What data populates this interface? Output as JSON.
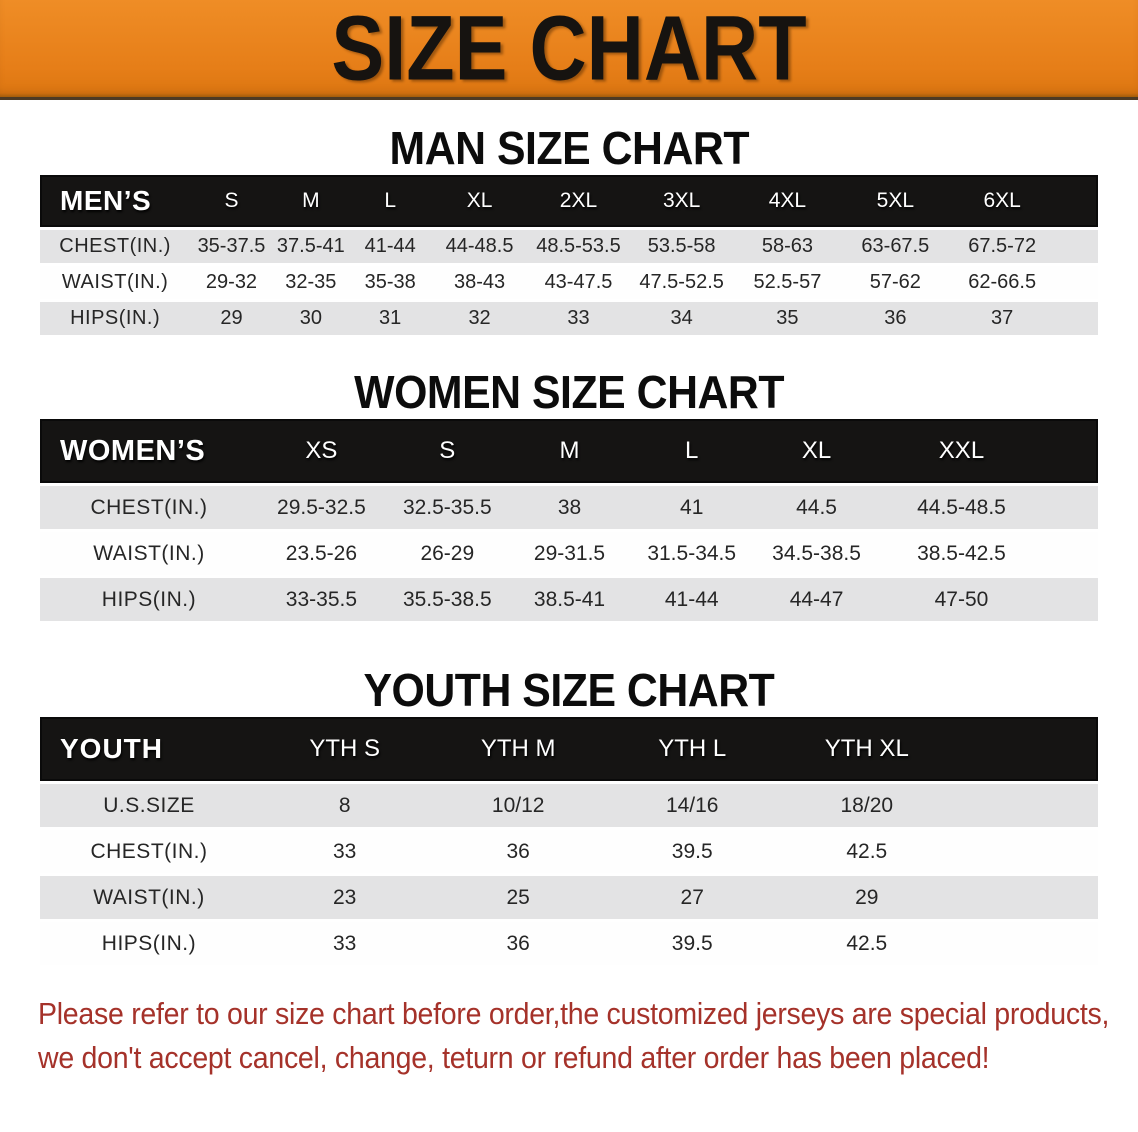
{
  "banner": {
    "title": "SIZE CHART"
  },
  "men": {
    "heading": "MAN SIZE CHART",
    "table": {
      "header": [
        "MEN’S",
        "S",
        "M",
        "L",
        "XL",
        "2XL",
        "3XL",
        "4XL",
        "5XL",
        "6XL"
      ],
      "rows": [
        {
          "label": "CHEST(IN.)",
          "values": [
            "35-37.5",
            "37.5-41",
            "41-44",
            "44-48.5",
            "48.5-53.5",
            "53.5-58",
            "58-63",
            "63-67.5",
            "67.5-72"
          ]
        },
        {
          "label": "WAIST(IN.)",
          "values": [
            "29-32",
            "32-35",
            "35-38",
            "38-43",
            "43-47.5",
            "47.5-52.5",
            "52.5-57",
            "57-62",
            "62-66.5"
          ]
        },
        {
          "label": "HIPS(IN.)",
          "values": [
            "29",
            "30",
            "31",
            "32",
            "33",
            "34",
            "35",
            "36",
            "37"
          ]
        }
      ]
    }
  },
  "women": {
    "heading": "WOMEN SIZE CHART",
    "table": {
      "header": [
        "WOMEN’S",
        "XS",
        "S",
        "M",
        "L",
        "XL",
        "XXL"
      ],
      "rows": [
        {
          "label": "CHEST(IN.)",
          "values": [
            "29.5-32.5",
            "32.5-35.5",
            "38",
            "41",
            "44.5",
            "44.5-48.5"
          ]
        },
        {
          "label": "WAIST(IN.)",
          "values": [
            "23.5-26",
            "26-29",
            "29-31.5",
            "31.5-34.5",
            "34.5-38.5",
            "38.5-42.5"
          ]
        },
        {
          "label": "HIPS(IN.)",
          "values": [
            "33-35.5",
            "35.5-38.5",
            "38.5-41",
            "41-44",
            "44-47",
            "47-50"
          ]
        }
      ]
    }
  },
  "youth": {
    "heading": "YOUTH SIZE CHART",
    "table": {
      "header": [
        "YOUTH",
        "YTH S",
        "YTH M",
        "YTH L",
        "YTH XL"
      ],
      "rows": [
        {
          "label": "U.S.SIZE",
          "values": [
            "8",
            "10/12",
            "14/16",
            "18/20"
          ]
        },
        {
          "label": "CHEST(IN.)",
          "values": [
            "33",
            "36",
            "39.5",
            "42.5"
          ]
        },
        {
          "label": "WAIST(IN.)",
          "values": [
            "23",
            "25",
            "27",
            "29"
          ]
        },
        {
          "label": "HIPS(IN.)",
          "values": [
            "33",
            "36",
            "39.5",
            "42.5"
          ]
        }
      ]
    }
  },
  "disclaimer": {
    "line1": "Please refer to our size chart before order,the customized jerseys are special products,",
    "line2": "we don't accept cancel, change, teturn or refund after order has been placed!"
  },
  "colors": {
    "banner_orange": "#E8821E",
    "banner_text": "#161310",
    "table_header_black": "#151413",
    "row_stripe_gray": "#E3E3E4",
    "disclaimer_red": "#A5322A"
  }
}
